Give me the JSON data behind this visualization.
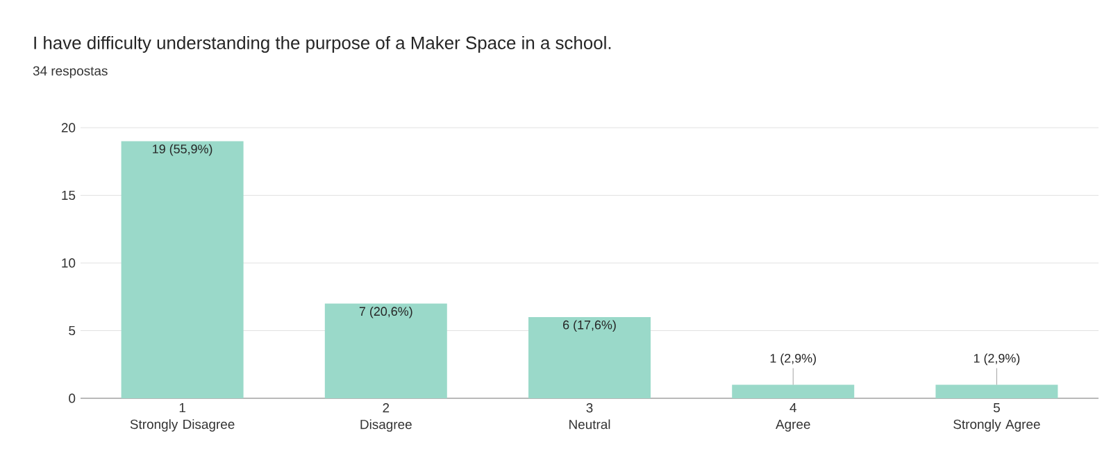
{
  "chart_data": {
    "type": "bar",
    "title": "I have difficulty understanding the purpose of a Maker Space in a school.",
    "subtitle": "34 respostas",
    "categories": [
      "1\nStrongly Disagree",
      "2\nDisagree",
      "3\nNeutral",
      "4\nAgree",
      "5\nStrongly Agree"
    ],
    "values": [
      19,
      7,
      6,
      1,
      1
    ],
    "value_labels": [
      "19 (55,9%)",
      "7 (20,6%)",
      "6 (17,6%)",
      "1 (2,9%)",
      "1 (2,9%)"
    ],
    "color": "#9ad9c9",
    "ylim": [
      0,
      20
    ],
    "yticks": [
      0,
      5,
      10,
      15,
      20
    ],
    "grid": "y"
  }
}
